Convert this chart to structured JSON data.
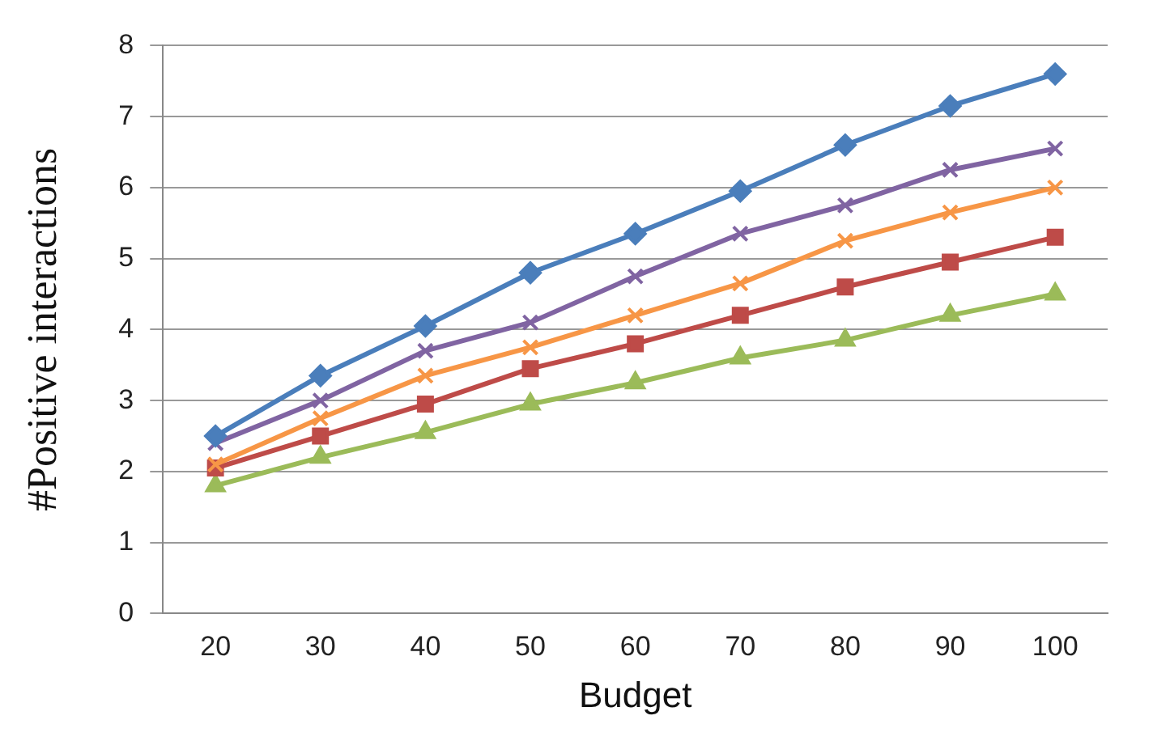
{
  "chart_data": {
    "type": "line",
    "xlabel": "Budget",
    "ylabel": "#Positive interactions",
    "categories": [
      "20",
      "30",
      "40",
      "50",
      "60",
      "70",
      "80",
      "90",
      "100"
    ],
    "series": [
      {
        "color": "#4a7ebb",
        "marker": "diamond",
        "values": [
          2.5,
          3.35,
          4.05,
          4.8,
          5.35,
          5.95,
          6.6,
          7.15,
          7.6
        ]
      },
      {
        "color": "#8064a2",
        "marker": "cross",
        "values": [
          2.4,
          3.0,
          3.7,
          4.1,
          4.75,
          5.35,
          5.75,
          6.25,
          6.55
        ]
      },
      {
        "color": "#f79646",
        "marker": "cross",
        "values": [
          2.1,
          2.75,
          3.35,
          3.75,
          4.2,
          4.65,
          5.25,
          5.65,
          6.0
        ]
      },
      {
        "color": "#be4b48",
        "marker": "square",
        "values": [
          2.05,
          2.5,
          2.95,
          3.45,
          3.8,
          4.2,
          4.6,
          4.95,
          5.3
        ]
      },
      {
        "color": "#9bbb59",
        "marker": "triangle",
        "values": [
          1.8,
          2.2,
          2.55,
          2.95,
          3.25,
          3.6,
          3.85,
          4.2,
          4.5
        ]
      }
    ],
    "ylim": [
      0,
      8
    ],
    "yticks": [
      0,
      1,
      2,
      3,
      4,
      5,
      6,
      7,
      8
    ],
    "grid": "y",
    "legend": false
  }
}
